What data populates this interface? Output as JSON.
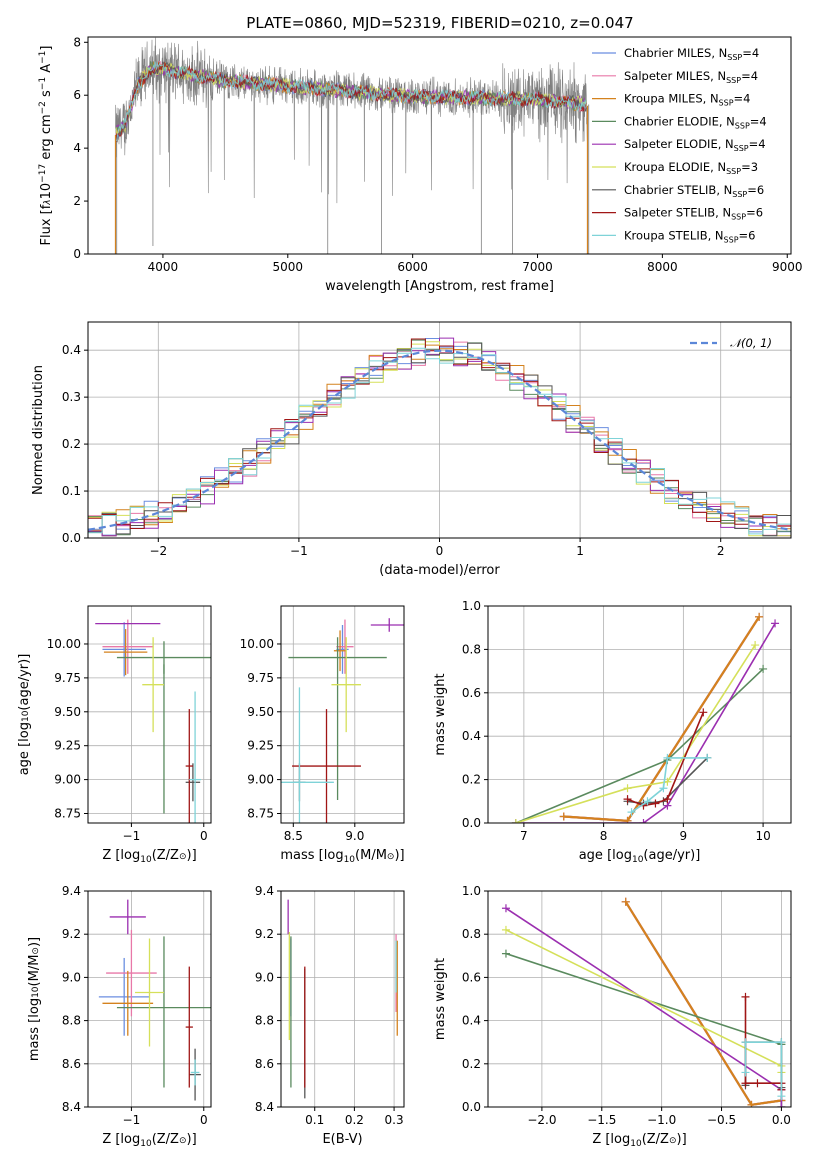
{
  "series_styles": [
    {
      "name": "Chabrier MILES",
      "color": "#6b8ee0"
    },
    {
      "name": "Salpeter MILES",
      "color": "#e878a8"
    },
    {
      "name": "Kroupa MILES",
      "color": "#d4821e"
    },
    {
      "name": "Chabrier ELODIE",
      "color": "#5a8a5e"
    },
    {
      "name": "Salpeter ELODIE",
      "color": "#9b2fb0"
    },
    {
      "name": "Kroupa ELODIE",
      "color": "#d5e05a"
    },
    {
      "name": "Chabrier STELIB",
      "color": "#555555"
    },
    {
      "name": "Salpeter STELIB",
      "color": "#a01616"
    },
    {
      "name": "Kroupa STELIB",
      "color": "#7fd3d8"
    }
  ],
  "chart_data": [
    {
      "id": "spectrum",
      "type": "line",
      "title": "PLATE=0860, MJD=52319, FIBERID=0210, z=0.047",
      "xlabel": "wavelength [Angstrom, rest frame]",
      "ylabel": "Flux [f",
      "ylabel_parts": [
        "Flux [f",
        "λ",
        "10",
        "−17",
        " erg cm",
        "−2",
        " s",
        "−1",
        " A",
        "−1",
        "]"
      ],
      "xlim": [
        3400,
        9030
      ],
      "ylim": [
        0,
        8.2
      ],
      "xticks": [
        4000,
        5000,
        6000,
        7000,
        8000,
        9000
      ],
      "yticks": [
        0,
        2,
        4,
        6,
        8
      ],
      "data_color": "#808080",
      "continuum": {
        "x": [
          3620,
          3700,
          3800,
          3900,
          4000,
          4200,
          4500,
          5000,
          5500,
          6000,
          6500,
          7000,
          7400
        ],
        "y": [
          4.5,
          4.9,
          6.4,
          7.0,
          7.0,
          6.8,
          6.55,
          6.35,
          6.15,
          5.95,
          5.9,
          5.85,
          5.65
        ]
      },
      "legend": [
        {
          "label": "Chabrier MILES, N",
          "sub": "SSP",
          "suffix": "=4"
        },
        {
          "label": "Salpeter MILES, N",
          "sub": "SSP",
          "suffix": "=4"
        },
        {
          "label": "Kroupa MILES, N",
          "sub": "SSP",
          "suffix": "=4"
        },
        {
          "label": "Chabrier ELODIE, N",
          "sub": "SSP",
          "suffix": "=4"
        },
        {
          "label": "Salpeter ELODIE, N",
          "sub": "SSP",
          "suffix": "=4"
        },
        {
          "label": "Kroupa ELODIE, N",
          "sub": "SSP",
          "suffix": "=3"
        },
        {
          "label": "Chabrier STELIB, N",
          "sub": "SSP",
          "suffix": "=6"
        },
        {
          "label": "Salpeter STELIB, N",
          "sub": "SSP",
          "suffix": "=6"
        },
        {
          "label": "Kroupa STELIB, N",
          "sub": "SSP",
          "suffix": "=6"
        }
      ],
      "legend_position": "right"
    },
    {
      "id": "residuals",
      "type": "histogram",
      "xlabel": "(data-model)/error",
      "ylabel": "Normed distribution",
      "xlim": [
        -2.5,
        2.5
      ],
      "ylim": [
        0,
        0.46
      ],
      "xticks": [
        -2,
        -1,
        0,
        1,
        2
      ],
      "yticks": [
        0.0,
        0.1,
        0.2,
        0.3,
        0.4
      ],
      "grid": true,
      "bin_width": 0.1,
      "normal_curve": {
        "label": "𝒩(0, 1)",
        "color": "#5b87d8",
        "style": "dashed"
      },
      "legend_position": "top-right"
    },
    {
      "id": "age-vs-Z",
      "type": "errorbar",
      "xlabel": "Z [log",
      "xlabel_parts": [
        "Z [log",
        "10",
        "(Z/Z",
        "⊙",
        ")]"
      ],
      "ylabel_parts": [
        "age  [log",
        "10",
        "(age/yr)]"
      ],
      "xlim": [
        -1.6,
        0.1
      ],
      "ylim": [
        8.68,
        10.28
      ],
      "xticks": [
        -1,
        0
      ],
      "yticks": [
        8.75,
        9.0,
        9.25,
        9.5,
        9.75,
        10.0
      ],
      "grid": true,
      "points": [
        {
          "s": 0,
          "x": -1.1,
          "xerr": 0.3,
          "y": 9.96,
          "yerr": 0.2
        },
        {
          "s": 1,
          "x": -1.05,
          "xerr": 0.35,
          "y": 9.98,
          "yerr": 0.2
        },
        {
          "s": 2,
          "x": -1.08,
          "xerr": 0.3,
          "y": 9.94,
          "yerr": 0.17
        },
        {
          "s": 3,
          "x": -0.55,
          "xerr": 0.65,
          "y": 9.9,
          "yerr": 0.12
        },
        {
          "s": 3,
          "x": -0.55,
          "xerr": 0.0,
          "y": 9.3,
          "yerr": 0.55
        },
        {
          "s": 4,
          "x": -1.05,
          "xerr": 0.45,
          "y": 10.15,
          "yerr": 0.0
        },
        {
          "s": 5,
          "x": -0.7,
          "xerr": 0.15,
          "y": 9.7,
          "yerr": 0.35
        },
        {
          "s": 6,
          "x": -0.15,
          "xerr": 0.1,
          "y": 8.98,
          "yerr": 0.14
        },
        {
          "s": 7,
          "x": -0.2,
          "xerr": 0.05,
          "y": 9.1,
          "yerr": 0.42
        },
        {
          "s": 8,
          "x": -0.12,
          "xerr": 0.08,
          "y": 9.0,
          "yerr": 0.65
        }
      ]
    },
    {
      "id": "age-vs-mass",
      "type": "errorbar",
      "xlabel_parts": [
        "mass [log",
        "10",
        "(M/M",
        "⊙",
        ")]"
      ],
      "xlim": [
        8.4,
        9.4
      ],
      "ylim": [
        8.68,
        10.28
      ],
      "xticks": [
        8.5,
        9.0
      ],
      "yticks": [
        8.75,
        9.0,
        9.25,
        9.5,
        9.75,
        10.0
      ],
      "grid": true,
      "points": [
        {
          "s": 0,
          "x": 8.9,
          "xerr": 0.05,
          "y": 9.96,
          "yerr": 0.18
        },
        {
          "s": 1,
          "x": 8.92,
          "xerr": 0.07,
          "y": 9.98,
          "yerr": 0.2
        },
        {
          "s": 2,
          "x": 8.88,
          "xerr": 0.05,
          "y": 9.95,
          "yerr": 0.15
        },
        {
          "s": 3,
          "x": 8.86,
          "xerr": 0.4,
          "y": 9.9,
          "yerr": 0.0
        },
        {
          "s": 3,
          "x": 8.86,
          "xerr": 0.0,
          "y": 9.45,
          "yerr": 0.6
        },
        {
          "s": 4,
          "x": 9.28,
          "xerr": 0.15,
          "y": 10.14,
          "yerr": 0.05
        },
        {
          "s": 5,
          "x": 8.93,
          "xerr": 0.12,
          "y": 9.7,
          "yerr": 0.35
        },
        {
          "s": 6,
          "x": 8.55,
          "xerr": 0.05,
          "y": 8.98,
          "yerr": 0.14
        },
        {
          "s": 7,
          "x": 8.77,
          "xerr": 0.28,
          "y": 9.1,
          "yerr": 0.42
        },
        {
          "s": 8,
          "x": 8.55,
          "xerr": 0.28,
          "y": 8.98,
          "yerr": 0.7
        }
      ]
    },
    {
      "id": "massweight-vs-age",
      "type": "line",
      "xlabel_parts": [
        "age  [log",
        "10",
        "(age/yr)]"
      ],
      "ylabel": "mass weight",
      "xlim": [
        6.55,
        10.35
      ],
      "ylim": [
        0,
        1.0
      ],
      "xticks": [
        7,
        8,
        9,
        10
      ],
      "yticks": [
        0.0,
        0.2,
        0.4,
        0.6,
        0.8,
        1.0
      ],
      "grid": true,
      "series": [
        {
          "s": 0,
          "x": [
            7.5,
            8.3,
            9.95
          ],
          "y": [
            0.03,
            0.01,
            0.95
          ]
        },
        {
          "s": 1,
          "x": [
            7.5,
            8.3,
            9.95
          ],
          "y": [
            0.03,
            0.01,
            0.95
          ]
        },
        {
          "s": 2,
          "x": [
            7.5,
            8.3,
            9.95
          ],
          "y": [
            0.03,
            0.01,
            0.95
          ]
        },
        {
          "s": 3,
          "x": [
            6.9,
            8.8,
            10.0
          ],
          "y": [
            0.0,
            0.29,
            0.71
          ]
        },
        {
          "s": 4,
          "x": [
            6.9,
            8.5,
            8.8,
            10.15
          ],
          "y": [
            0.0,
            0.0,
            0.08,
            0.92
          ]
        },
        {
          "s": 5,
          "x": [
            6.9,
            8.3,
            8.8,
            9.9
          ],
          "y": [
            0.0,
            0.16,
            0.19,
            0.82
          ]
        },
        {
          "s": 6,
          "x": [
            8.3,
            8.5,
            8.75,
            9.3
          ],
          "y": [
            0.1,
            0.09,
            0.1,
            0.3
          ]
        },
        {
          "s": 7,
          "x": [
            8.3,
            8.5,
            8.65,
            8.8,
            9.25
          ],
          "y": [
            0.11,
            0.08,
            0.09,
            0.11,
            0.51
          ]
        },
        {
          "s": 8,
          "x": [
            8.35,
            8.55,
            8.75,
            8.8,
            9.3
          ],
          "y": [
            0.05,
            0.1,
            0.16,
            0.3,
            0.3
          ]
        }
      ]
    },
    {
      "id": "mass-vs-Z",
      "type": "errorbar",
      "xlabel_parts": [
        "Z [log",
        "10",
        "(Z/Z",
        "⊙",
        ")]"
      ],
      "ylabel_parts": [
        "mass [log",
        "10",
        "(M/M",
        "⊙",
        ")]"
      ],
      "xlim": [
        -1.6,
        0.1
      ],
      "ylim": [
        8.4,
        9.4
      ],
      "xticks": [
        -1,
        0
      ],
      "yticks": [
        8.4,
        8.6,
        8.8,
        9.0,
        9.2,
        9.4
      ],
      "grid": true,
      "points": [
        {
          "s": 0,
          "x": -1.1,
          "xerr": 0.35,
          "y": 8.91,
          "yerr": 0.18
        },
        {
          "s": 1,
          "x": -1.0,
          "xerr": 0.35,
          "y": 9.02,
          "yerr": 0.2
        },
        {
          "s": 2,
          "x": -1.05,
          "xerr": 0.35,
          "y": 8.88,
          "yerr": 0.15
        },
        {
          "s": 3,
          "x": -0.55,
          "xerr": 0.65,
          "y": 8.86,
          "yerr": 0.0
        },
        {
          "s": 3,
          "x": -0.55,
          "xerr": 0.0,
          "y": 8.84,
          "yerr": 0.35
        },
        {
          "s": 4,
          "x": -1.05,
          "xerr": 0.25,
          "y": 9.28,
          "yerr": 0.08
        },
        {
          "s": 5,
          "x": -0.75,
          "xerr": 0.2,
          "y": 8.93,
          "yerr": 0.25
        },
        {
          "s": 6,
          "x": -0.12,
          "xerr": 0.08,
          "y": 8.55,
          "yerr": 0.12
        },
        {
          "s": 7,
          "x": -0.2,
          "xerr": 0.05,
          "y": 8.77,
          "yerr": 0.28
        },
        {
          "s": 8,
          "x": -0.12,
          "xerr": 0.06,
          "y": 8.56,
          "yerr": 0.06
        }
      ]
    },
    {
      "id": "mass-vs-EBV",
      "type": "errorbar",
      "xlabel": "E(B-V)",
      "xlim": [
        0.015,
        0.325
      ],
      "ylim": [
        8.4,
        9.4
      ],
      "xticks": [
        0.1,
        0.2,
        0.3
      ],
      "yticks": [
        8.4,
        8.6,
        8.8,
        9.0,
        9.2,
        9.4
      ],
      "grid": true,
      "points": [
        {
          "s": 0,
          "x": 0.04,
          "xerr": 0.0,
          "y": 9.0,
          "yerr": 0.18
        },
        {
          "s": 1,
          "x": 0.305,
          "xerr": 0.0,
          "y": 9.02,
          "yerr": 0.18
        },
        {
          "s": 2,
          "x": 0.308,
          "xerr": 0.0,
          "y": 8.95,
          "yerr": 0.22
        },
        {
          "s": 3,
          "x": 0.04,
          "xerr": 0.0,
          "y": 8.84,
          "yerr": 0.35
        },
        {
          "s": 4,
          "x": 0.033,
          "xerr": 0.0,
          "y": 9.28,
          "yerr": 0.08
        },
        {
          "s": 5,
          "x": 0.036,
          "xerr": 0.0,
          "y": 8.96,
          "yerr": 0.25
        },
        {
          "s": 6,
          "x": 0.075,
          "xerr": 0.0,
          "y": 8.74,
          "yerr": 0.3
        },
        {
          "s": 7,
          "x": 0.075,
          "xerr": 0.0,
          "y": 8.77,
          "yerr": 0.28
        },
        {
          "s": 8,
          "x": 0.305,
          "xerr": 0.0,
          "y": 9.05,
          "yerr": 0.12
        }
      ]
    },
    {
      "id": "massweight-vs-Z",
      "type": "line",
      "xlabel_parts": [
        "Z [log",
        "10",
        "(Z/Z",
        "⊙",
        ")]"
      ],
      "ylabel": "mass weight",
      "xlim": [
        -2.45,
        0.08
      ],
      "ylim": [
        0,
        1.0
      ],
      "xticks": [
        -2.0,
        -1.5,
        -1.0,
        -0.5,
        0.0
      ],
      "yticks": [
        0.0,
        0.2,
        0.4,
        0.6,
        0.8,
        1.0
      ],
      "grid": true,
      "series": [
        {
          "s": 0,
          "x": [
            -1.3,
            -0.25,
            0.0
          ],
          "y": [
            0.95,
            0.01,
            0.03
          ]
        },
        {
          "s": 1,
          "x": [
            -1.3,
            -0.25,
            0.0
          ],
          "y": [
            0.95,
            0.01,
            0.03
          ]
        },
        {
          "s": 2,
          "x": [
            -1.3,
            -0.25,
            0.0
          ],
          "y": [
            0.95,
            0.01,
            0.03
          ]
        },
        {
          "s": 3,
          "x": [
            -2.3,
            0.0,
            0.0
          ],
          "y": [
            0.71,
            0.29,
            0.0
          ]
        },
        {
          "s": 4,
          "x": [
            -2.3,
            0.0,
            0.0
          ],
          "y": [
            0.92,
            0.08,
            0.0
          ]
        },
        {
          "s": 5,
          "x": [
            -2.3,
            0.0,
            0.0
          ],
          "y": [
            0.82,
            0.19,
            0.16
          ]
        },
        {
          "s": 6,
          "x": [
            -0.3,
            -0.3,
            0.0,
            0.0
          ],
          "y": [
            0.1,
            0.3,
            0.3,
            0.09
          ]
        },
        {
          "s": 7,
          "x": [
            -0.3,
            -0.3,
            -0.2,
            0.0,
            0.0
          ],
          "y": [
            0.51,
            0.11,
            0.11,
            0.11,
            0.08
          ]
        },
        {
          "s": 8,
          "x": [
            -0.3,
            -0.3,
            0.0,
            0.0
          ],
          "y": [
            0.16,
            0.3,
            0.3,
            0.05
          ]
        }
      ]
    }
  ]
}
